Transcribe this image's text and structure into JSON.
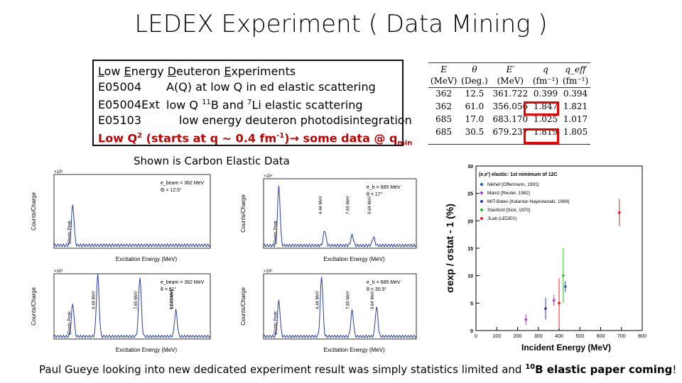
{
  "title": "LEDEX Experiment ( Data Mining )",
  "experiments": {
    "heading_parts": [
      "L",
      "ow ",
      "E",
      "nergy ",
      "D",
      "euteron ",
      "E",
      "xperiments"
    ],
    "rows": [
      {
        "id": "E05004",
        "desc": "A(Q) at low Q in ed elastic scattering"
      },
      {
        "id": "E05004Ext",
        "desc_pre": "low Q ",
        "desc_sup": "11",
        "desc_mid": "B and ",
        "desc_sup2": "7",
        "desc_post": "Li elastic scattering"
      },
      {
        "id": "E05103",
        "desc": "low energy deuteron photodisintegration"
      }
    ],
    "red_line": {
      "a": "Low Q",
      "sup": "2",
      "b": " (starts at q ~ 0.4 fm",
      "sup2": "-1",
      "c": ")",
      "arrow": "→",
      "d": " some data @ q",
      "sub": "min"
    }
  },
  "kin_table": {
    "headers": [
      "E",
      "θ",
      "E′",
      "q",
      "q_eff"
    ],
    "units": [
      "(MeV)",
      "(Deg.)",
      "(MeV)",
      "(fm⁻¹)",
      "(fm⁻¹)"
    ],
    "rows": [
      [
        "362",
        "12.5",
        "361.722",
        "0.399",
        "0.394"
      ],
      [
        "362",
        "61.0",
        "356.056",
        "1.847",
        "1.821"
      ],
      [
        "685",
        "17.0",
        "683.170",
        "1.025",
        "1.017"
      ],
      [
        "685",
        "30.5",
        "679.237",
        "1.819",
        "1.805"
      ]
    ]
  },
  "shown_label": "Shown is Carbon Elastic Data",
  "spectra": [
    {
      "ylabel": "Counts/Charge",
      "xlabel": "Excitation Energy (MeV)",
      "ann1": "e_beam = 362 MeV",
      "ann2": "Θ = 12.5°",
      "peak": "Elastic Peak",
      "exp": "×10⁶"
    },
    {
      "ylabel": "Counts/Charge",
      "xlabel": "Excitation Energy (MeV)",
      "ann1": "e_b = 685 MeV",
      "ann2": "θ = 17°",
      "peak": "Elastic Peak",
      "exp": "×10⁴",
      "lines": [
        "4.44 MeV",
        "7.65 MeV",
        "9.64 MeV"
      ]
    },
    {
      "ylabel": "Counts/Charge",
      "xlabel": "Excitation Energy (MeV)",
      "ann1": "e_beam = 362 MeV",
      "ann2": "θ = 61°",
      "peak": "Elastic Peak",
      "exp": "×10⁶",
      "lines": [
        "4.44 MeV",
        "7.65 MeV",
        "9.64 MeV",
        "14.08 MeV"
      ]
    },
    {
      "ylabel": "Counts/Charge",
      "xlabel": "Excitation Energy (MeV)",
      "ann1": "e_b = 685 MeV",
      "ann2": "θ = 30.5°",
      "peak": "Elastic Peak",
      "exp": "×10⁶",
      "lines": [
        "4.44 MeV",
        "7.65 MeV",
        "9.64 MeV"
      ]
    }
  ],
  "chart_data": {
    "type": "scatter",
    "title": "(e,e') elastic: 1st minimum of 12C",
    "xlabel": "Incident Energy (MeV)",
    "ylabel": "σexp / σstat - 1 (%)",
    "xlim": [
      0,
      800
    ],
    "ylim": [
      0,
      30
    ],
    "xticks": [
      "0",
      "100",
      "200",
      "300",
      "400",
      "500",
      "600",
      "700",
      "800"
    ],
    "yticks": [
      "0",
      "5",
      "10",
      "15",
      "20",
      "25",
      "30"
    ],
    "series": [
      {
        "name": "Nikhef [Offermann, 1991]",
        "color": "#1f4fbf",
        "points": [
          {
            "x": 430,
            "y": 8,
            "err": 1
          }
        ]
      },
      {
        "name": "Mainz [Reuter, 1982]",
        "color": "#b03ad0",
        "points": [
          {
            "x": 240,
            "y": 2,
            "err": 1
          },
          {
            "x": 375,
            "y": 5.5,
            "err": 1
          }
        ]
      },
      {
        "name": "MIT-Bates [Kalantar-Nayestanaki, 1989]",
        "color": "#2a2ad0",
        "points": [
          {
            "x": 335,
            "y": 4,
            "err": 2
          }
        ]
      },
      {
        "name": "Stanford [Sick, 1970]",
        "color": "#22bb22",
        "points": [
          {
            "x": 420,
            "y": 10,
            "err": 5
          }
        ]
      },
      {
        "name": "JLab (LEDEX)",
        "color": "#e02020",
        "points": [
          {
            "x": 400,
            "y": 5,
            "err": 4.5
          },
          {
            "x": 690,
            "y": 21.5,
            "err": 2.5
          }
        ]
      }
    ]
  },
  "footer": {
    "text": "Paul Gueye looking into new dedicated experiment result was simply  statistics limited and ",
    "sup": "10",
    "bold": "B elastic paper coming",
    "end": "!"
  }
}
